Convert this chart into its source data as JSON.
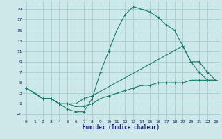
{
  "xlabel": "Humidex (Indice chaleur)",
  "bg_color": "#cce8e8",
  "grid_color": "#aacccc",
  "line_color": "#1a7a6e",
  "xlim": [
    -0.5,
    23.5
  ],
  "ylim": [
    -2,
    20.5
  ],
  "xticks": [
    0,
    1,
    2,
    3,
    4,
    5,
    6,
    7,
    8,
    9,
    10,
    11,
    12,
    13,
    14,
    15,
    16,
    17,
    18,
    19,
    20,
    21,
    22,
    23
  ],
  "yticks": [
    -1,
    1,
    3,
    5,
    7,
    9,
    11,
    13,
    15,
    17,
    19
  ],
  "line1_x": [
    0,
    1,
    2,
    3,
    4,
    5,
    6,
    7,
    8,
    9,
    10,
    11,
    12,
    13,
    14,
    15,
    16,
    17,
    18,
    19,
    20,
    21,
    22,
    23
  ],
  "line1_y": [
    4,
    3,
    2,
    2,
    1,
    0,
    -0.5,
    -0.5,
    2,
    7,
    11,
    15,
    18,
    19.5,
    19,
    18.5,
    17.5,
    16,
    15,
    12,
    9,
    7,
    5.5,
    5.5
  ],
  "line2_x": [
    0,
    2,
    3,
    4,
    5,
    6,
    7,
    8,
    19,
    20,
    21,
    22,
    23
  ],
  "line2_y": [
    4,
    2,
    2,
    1,
    1,
    1,
    2,
    2.5,
    12,
    9,
    9,
    7,
    5.5
  ],
  "line3_x": [
    0,
    2,
    3,
    4,
    5,
    6,
    7,
    8,
    9,
    10,
    11,
    12,
    13,
    14,
    15,
    16,
    17,
    18,
    19,
    20,
    21,
    22,
    23
  ],
  "line3_y": [
    4,
    2,
    2,
    1,
    1,
    0.5,
    0.5,
    1,
    2,
    2.5,
    3,
    3.5,
    4,
    4.5,
    4.5,
    5,
    5,
    5,
    5,
    5.5,
    5.5,
    5.5,
    5.5
  ]
}
